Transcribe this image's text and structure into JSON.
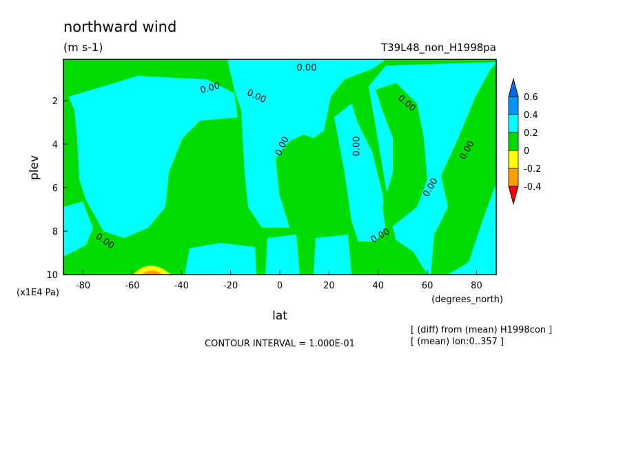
{
  "chart_data": {
    "type": "contour",
    "title": "northward wind",
    "subtitle": "(m s-1)",
    "run_label": "T39L48_non_H1998pa",
    "x_label": "lat",
    "x_unit": "(degrees_north)",
    "y_label": "plev",
    "y_unit": "(x1E4 Pa)",
    "xlim": [
      -88,
      88
    ],
    "ylim": [
      10,
      0.1
    ],
    "xticks": [
      -80,
      -60,
      -40,
      -20,
      0,
      20,
      40,
      60,
      80
    ],
    "yticks": [
      2,
      4,
      6,
      8,
      10
    ],
    "contour_line_label": "0.00",
    "colorbar": {
      "levels": [
        -0.4,
        -0.2,
        0,
        0.2,
        0.4,
        0.6
      ],
      "colors": [
        "#0a64e6",
        "#0096ff",
        "#00ffff",
        "#00dc00",
        "#ffff00",
        "#ffa000",
        "#ff0000"
      ]
    },
    "contour_interval": "CONTOUR INTERVAL = 1.000E-01",
    "notes": [
      "[ (diff) from (mean) H1998con ]",
      "[ (mean) lon:0..357 ]"
    ]
  }
}
